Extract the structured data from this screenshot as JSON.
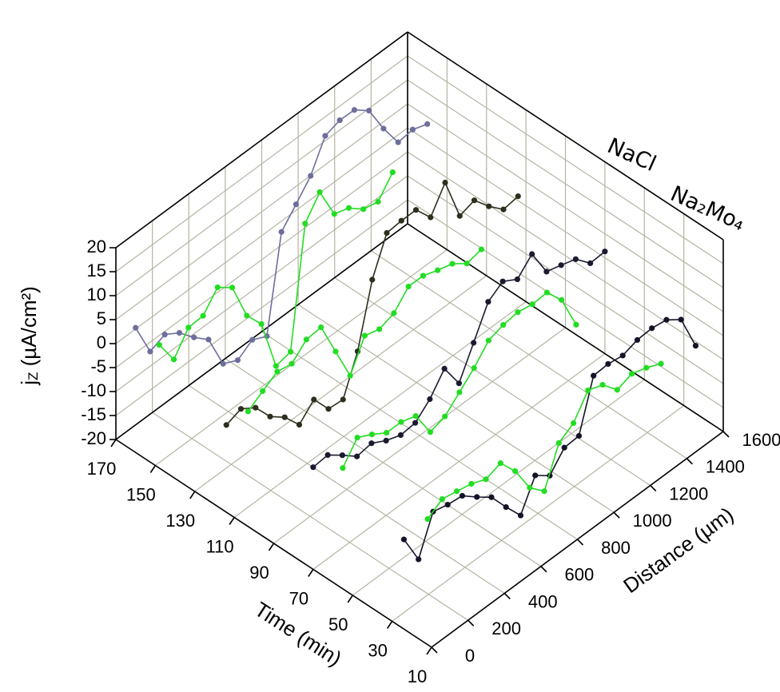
{
  "chart_data": {
    "type": "line3d",
    "z_label": [
      "j",
      "Z",
      " (µA/cm²)"
    ],
    "x_label": "Distance (µm)",
    "y_label": "Time (min)",
    "xlim": [
      0,
      1600
    ],
    "xticks": [
      0,
      200,
      400,
      600,
      800,
      1000,
      1200,
      1400,
      1600
    ],
    "ylim": [
      10,
      170
    ],
    "yticks": [
      10,
      30,
      50,
      70,
      90,
      110,
      130,
      150,
      170
    ],
    "zlim": [
      -20,
      20
    ],
    "zticks": [
      -20,
      -15,
      -10,
      -5,
      0,
      5,
      10,
      15,
      20
    ],
    "grid": true,
    "series": [
      {
        "name": "NaCl",
        "color": "#000000",
        "distance": [
          0,
          80,
          160,
          240,
          320,
          400,
          480,
          560,
          640,
          720,
          800,
          880,
          960,
          1040,
          1120,
          1200,
          1280,
          1360,
          1440,
          1520,
          1600
        ],
        "traces": [
          {
            "time": 160,
            "color": "#6e6e9c",
            "values": [
              6,
              -1.2,
              0.1,
              -1.8,
              -5,
              -7.7,
              -15,
              -16.5,
              -14.5,
              -16,
              3.5,
              7,
              10.7,
              16.8,
              17.8,
              17.7,
              15.3,
              9.3,
              4.2,
              4.6,
              3.5
            ]
          },
          {
            "time": 114,
            "color": "#2e2e1e",
            "values": [
              -1.8,
              -0.7,
              -2.7,
              -6.8,
              -9.2,
              -13,
              -10,
              -14.2,
              -14.5,
              -6.7,
              6,
              13.5,
              13.8,
              13.8,
              10,
              15,
              5.8,
              6.8,
              3.3,
              0.4,
              0.9
            ]
          },
          {
            "time": 70,
            "color": "#1a1a30",
            "values": [
              1.3,
              1.6,
              -0.7,
              -3.2,
              -2.7,
              -4.4,
              -5.5,
              -5.2,
              -2.5,
              1.6,
              -3.7,
              2.5,
              8.8,
              10.8,
              9,
              12,
              6.1,
              5.2,
              4.2,
              1.1,
              1.3
            ]
          },
          {
            "time": 24,
            "color": "#141428",
            "values": [
              -1.3,
              -7.7,
              0,
              -0.8,
              -1.2,
              -3.7,
              -6,
              -10.3,
              -14.3,
              -8.2,
              -10.5,
              -6.9,
              -6.7,
              3.6,
              3.8,
              3.3,
              4.3,
              4.5,
              4,
              1.8,
              -5.9
            ]
          }
        ]
      },
      {
        "name": "Na₂Mo₄",
        "color": "#22dd22",
        "distance": [
          0,
          80,
          160,
          240,
          320,
          400,
          480,
          560,
          640,
          720,
          800,
          880,
          960,
          1040,
          1120,
          1200,
          1280
        ],
        "traces": [
          {
            "time": 148,
            "color": "#22dd22",
            "values": [
              5.7,
              0.4,
              4.8,
              5,
              8.7,
              6.4,
              -1.7,
              -5.7,
              -16.7,
              -16,
              8.5,
              12.8,
              6,
              5,
              2.5,
              1.8,
              5.7
            ]
          },
          {
            "time": 103,
            "color": "#22dd22",
            "values": [
              4,
              6,
              7.8,
              7.2,
              10,
              10.3,
              3,
              -4.3,
              1.8,
              0.9,
              2,
              5.3,
              5.3,
              4.2,
              3.3,
              1.1,
              1.8
            ]
          },
          {
            "time": 55,
            "color": "#22dd22",
            "values": [
              5.2,
              9.3,
              7.7,
              5.8,
              5.8,
              4.8,
              -0.8,
              0.2,
              3,
              5.8,
              9.3,
              10.3,
              10.7,
              10.1,
              10.3,
              6.5,
              -0.9
            ]
          },
          {
            "time": 12,
            "color": "#22dd22",
            "values": [
              6.2,
              8.1,
              7.5,
              6.8,
              5.5,
              6.6,
              2.7,
              -3,
              -6,
              1.8,
              3.7,
              8.3,
              7.2,
              3.9,
              5,
              4,
              2.6
            ]
          }
        ]
      }
    ]
  }
}
